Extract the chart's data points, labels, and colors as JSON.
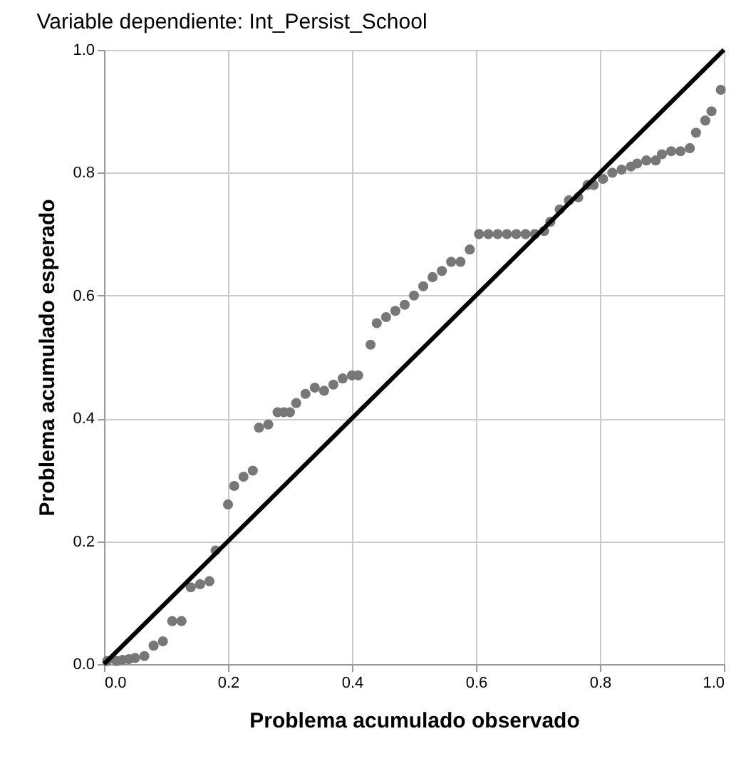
{
  "chart_data": {
    "type": "scatter",
    "title": "Variable dependiente: Int_Persist_School",
    "xlabel": "Problema acumulado observado",
    "ylabel": "Problema acumulado esperado",
    "xlim": [
      0,
      1
    ],
    "ylim": [
      0,
      1
    ],
    "xticks": [
      {
        "value": 0,
        "label": "0.0"
      },
      0.2,
      0.4,
      0.6,
      0.8,
      {
        "value": 1,
        "label": "1.0"
      }
    ],
    "yticks": [
      {
        "value": 0,
        "label": "0.0"
      },
      0.2,
      0.4,
      0.6,
      0.8,
      {
        "value": 1,
        "label": "1.0"
      }
    ],
    "grid": true,
    "series": [
      {
        "marker": "circle",
        "color": "#777777",
        "x": [
          0.005,
          0.02,
          0.03,
          0.04,
          0.05,
          0.065,
          0.08,
          0.095,
          0.11,
          0.125,
          0.14,
          0.155,
          0.17,
          0.18,
          0.2,
          0.21,
          0.225,
          0.24,
          0.25,
          0.265,
          0.28,
          0.29,
          0.3,
          0.31,
          0.325,
          0.34,
          0.355,
          0.37,
          0.385,
          0.4,
          0.41,
          0.43,
          0.44,
          0.455,
          0.47,
          0.485,
          0.5,
          0.515,
          0.53,
          0.545,
          0.56,
          0.575,
          0.59,
          0.605,
          0.62,
          0.635,
          0.65,
          0.665,
          0.68,
          0.695,
          0.71,
          0.72,
          0.735,
          0.75,
          0.765,
          0.78,
          0.79,
          0.805,
          0.82,
          0.835,
          0.85,
          0.86,
          0.875,
          0.89,
          0.9,
          0.915,
          0.93,
          0.945,
          0.955,
          0.97,
          0.98,
          0.995
        ],
        "values": [
          0.005,
          0.005,
          0.007,
          0.008,
          0.01,
          0.013,
          0.03,
          0.037,
          0.07,
          0.07,
          0.125,
          0.13,
          0.135,
          0.185,
          0.26,
          0.29,
          0.305,
          0.315,
          0.385,
          0.39,
          0.41,
          0.41,
          0.41,
          0.425,
          0.44,
          0.45,
          0.445,
          0.455,
          0.465,
          0.47,
          0.47,
          0.52,
          0.555,
          0.565,
          0.575,
          0.585,
          0.6,
          0.615,
          0.63,
          0.64,
          0.655,
          0.655,
          0.675,
          0.7,
          0.7,
          0.7,
          0.7,
          0.7,
          0.7,
          0.7,
          0.705,
          0.72,
          0.74,
          0.755,
          0.76,
          0.78,
          0.78,
          0.79,
          0.8,
          0.805,
          0.81,
          0.815,
          0.82,
          0.82,
          0.83,
          0.835,
          0.835,
          0.84,
          0.865,
          0.885,
          0.9,
          0.935
        ]
      },
      {
        "type": "line",
        "marker": "none",
        "line_style": "solid",
        "color": "#000000",
        "x": [
          0,
          1
        ],
        "values": [
          0,
          1
        ]
      }
    ]
  }
}
